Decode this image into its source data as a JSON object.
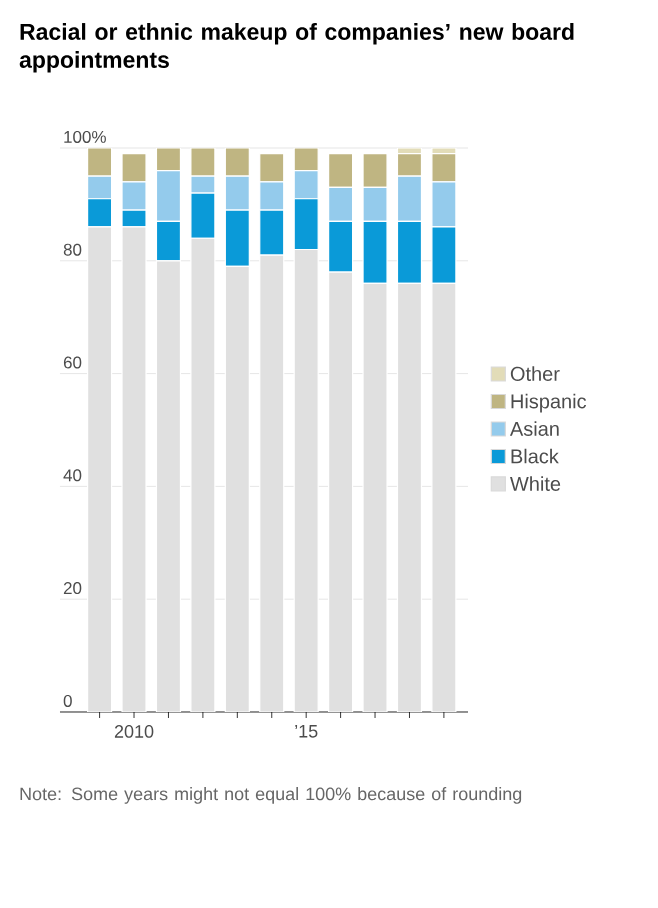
{
  "chart_data": {
    "type": "bar",
    "stacked": true,
    "title": "Racial or ethnic makeup of companies’ new board appointments",
    "categories": [
      null,
      "2010",
      null,
      null,
      null,
      null,
      "’15",
      null,
      null,
      null,
      null
    ],
    "series": [
      {
        "name": "White",
        "color": "#e0e0e0",
        "values": [
          86,
          86,
          80,
          84,
          79,
          81,
          82,
          78,
          76,
          76,
          76
        ]
      },
      {
        "name": "Black",
        "color": "#0a9ad8",
        "values": [
          5,
          3,
          7,
          8,
          10,
          8,
          9,
          9,
          11,
          11,
          10
        ]
      },
      {
        "name": "Asian",
        "color": "#94cbec",
        "values": [
          4,
          5,
          9,
          3,
          6,
          5,
          5,
          6,
          6,
          8,
          8
        ]
      },
      {
        "name": "Hispanic",
        "color": "#bfb582",
        "values": [
          5,
          5,
          4,
          5,
          5,
          5,
          4,
          6,
          6,
          4,
          5
        ]
      },
      {
        "name": "Other",
        "color": "#e2dcb8",
        "values": [
          0,
          0,
          0,
          0,
          0,
          0,
          0,
          0,
          0,
          1,
          1
        ]
      }
    ],
    "ylim": [
      0,
      100
    ],
    "yticks": [
      0,
      20,
      40,
      60,
      80,
      {
        "value": 100,
        "label": "100%"
      }
    ],
    "grid": "y",
    "legend": "right",
    "annotations": [
      "Note: Some years might not equal 100% because of rounding"
    ]
  }
}
